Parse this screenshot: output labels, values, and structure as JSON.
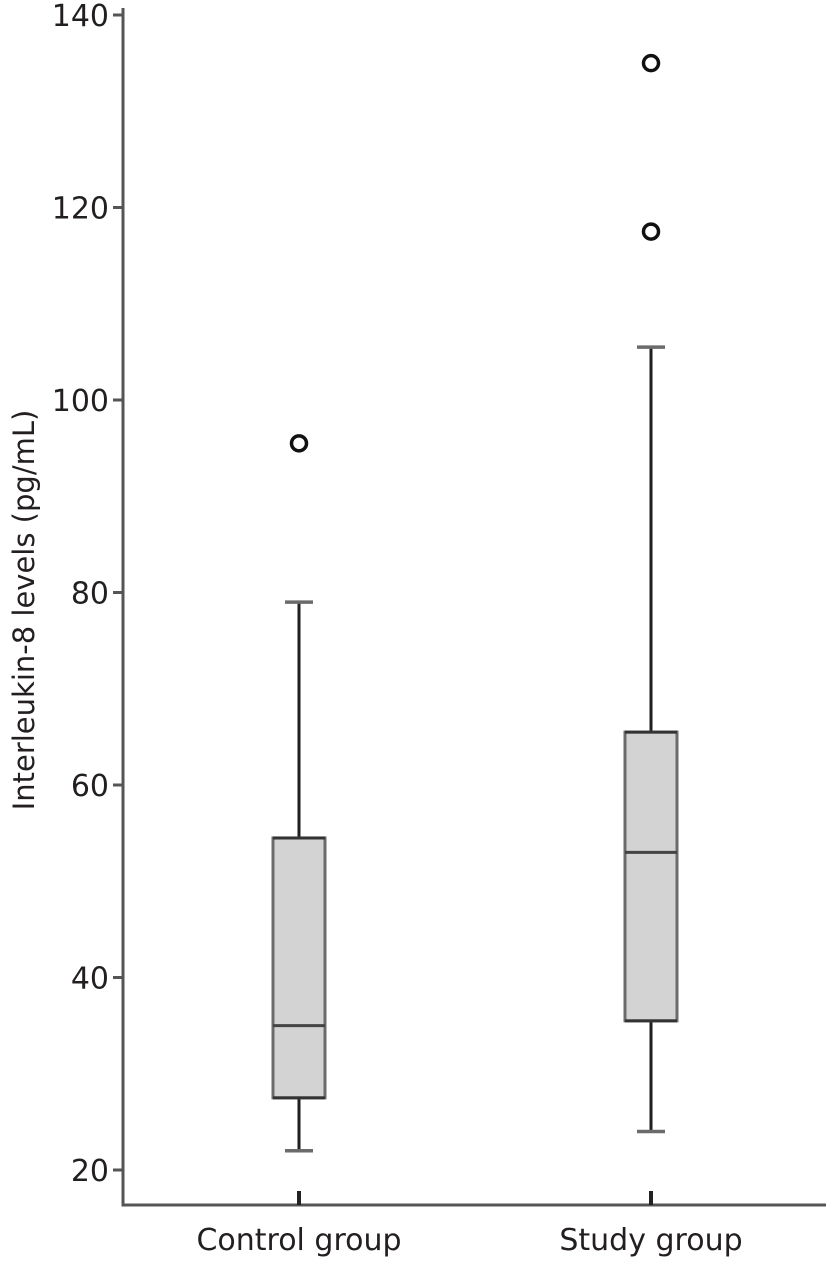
{
  "chart_data": {
    "type": "box",
    "title": "",
    "xlabel": "",
    "ylabel": "Interleukin-8 levels (pg/mL)",
    "ylim": [
      16,
      142
    ],
    "yticks": [
      20,
      40,
      60,
      80,
      100,
      120,
      140
    ],
    "ytick_labels": [
      "20",
      "40",
      "60",
      "80",
      "100",
      "120",
      "140"
    ],
    "categories": [
      "Control group",
      "Study group"
    ],
    "grid": false,
    "boxes": [
      {
        "name": "Control group",
        "whisker_low": 22,
        "q1": 27.5,
        "median": 35,
        "q3": 54.5,
        "whisker_high": 79,
        "outliers": [
          95.5
        ]
      },
      {
        "name": "Study group",
        "whisker_low": 24,
        "q1": 35.5,
        "median": 53,
        "q3": 65.5,
        "whisker_high": 105.5,
        "outliers": [
          117.5,
          135
        ]
      }
    ],
    "colors": {
      "box_fill": "#d3d3d3",
      "box_edge": "#6b6b6b",
      "whisker": "#1f1f1f",
      "outlier": "#111111",
      "text": "#231f20"
    }
  }
}
